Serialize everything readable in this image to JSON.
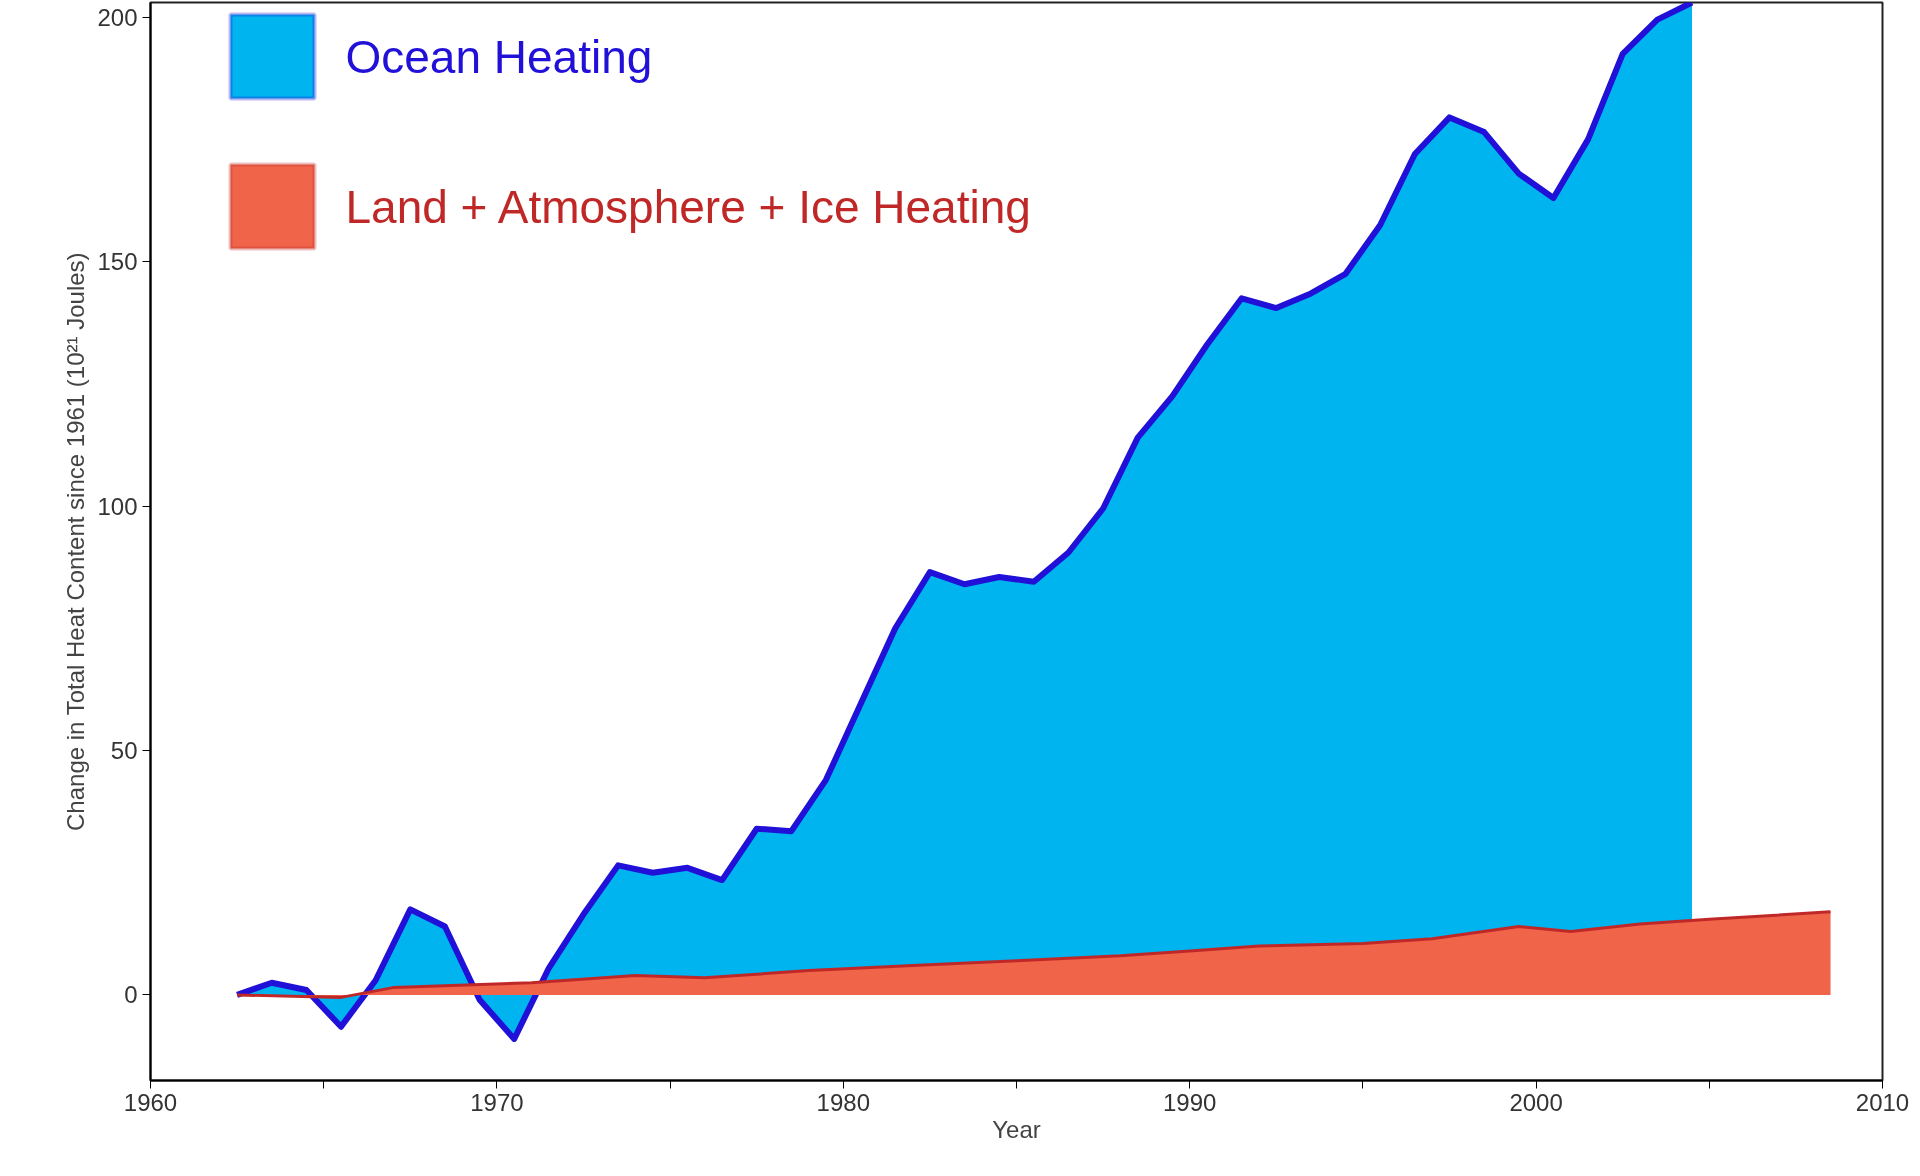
{
  "chart_data": {
    "type": "area",
    "xlabel": "Year",
    "ylabel": "Change in Total Heat Content since 1961 (10²¹ Joules)",
    "series": [
      {
        "name": "Ocean Heating",
        "color": "#00b4f0",
        "x": [
          1962.5,
          1963.5,
          1964.5,
          1965.5,
          1966.5,
          1967.5,
          1968.5,
          1969.5,
          1970.5,
          1971.5,
          1972.5,
          1973.5,
          1974.5,
          1975.5,
          1976.5,
          1977.5,
          1978.5,
          1979.5,
          1980.5,
          1981.5,
          1982.5,
          1983.5,
          1984.5,
          1985.5,
          1986.5,
          1987.5,
          1988.5,
          1989.5,
          1990.5,
          1991.5,
          1992.5,
          1993.5,
          1994.5,
          1995.5,
          1996.5,
          1997.5,
          1998.5,
          1999.5,
          2000.5,
          2001.5,
          2002.5,
          2003.5,
          2004.5
        ],
        "values": [
          0,
          2.5,
          1,
          -6.5,
          3,
          17.5,
          14,
          -1,
          -9,
          5.5,
          16.5,
          26.5,
          25,
          26,
          23.5,
          34,
          33.5,
          44,
          59.5,
          75,
          86.5,
          84,
          85.5,
          84.5,
          90.5,
          99.5,
          114,
          122.5,
          133,
          142.5,
          140.5,
          143.5,
          147.5,
          157.5,
          172,
          179.5,
          176.5,
          168,
          163,
          175,
          192.5,
          199.5,
          203
        ]
      },
      {
        "name": "Land + Atmosphere + Ice Heating",
        "color": "#f0644a",
        "x": [
          1962.5,
          1965.5,
          1967,
          1971,
          1974,
          1976,
          1979,
          1982,
          1985,
          1988,
          1990,
          1992,
          1995,
          1997,
          1999.5,
          2001,
          2003,
          2005,
          2008.5
        ],
        "values": [
          0,
          -0.5,
          1.5,
          2.5,
          4,
          3.5,
          5,
          6,
          7,
          8,
          9,
          10,
          10.5,
          11.5,
          14,
          13,
          14.5,
          15.5,
          17
        ]
      }
    ],
    "xlim": [
      1960,
      2010
    ],
    "ylim": [
      -17.5,
      203
    ],
    "xticks": [
      1960,
      {
        "value": 1965,
        "label": null
      },
      1970,
      {
        "value": 1975,
        "label": null
      },
      1980,
      {
        "value": 1985,
        "label": null
      },
      1990,
      {
        "value": 1995,
        "label": null
      },
      2000,
      {
        "value": 2005,
        "label": null
      },
      2010
    ],
    "yticks": [
      0,
      50,
      100,
      150,
      200
    ],
    "grid": false,
    "legend": "top left"
  }
}
